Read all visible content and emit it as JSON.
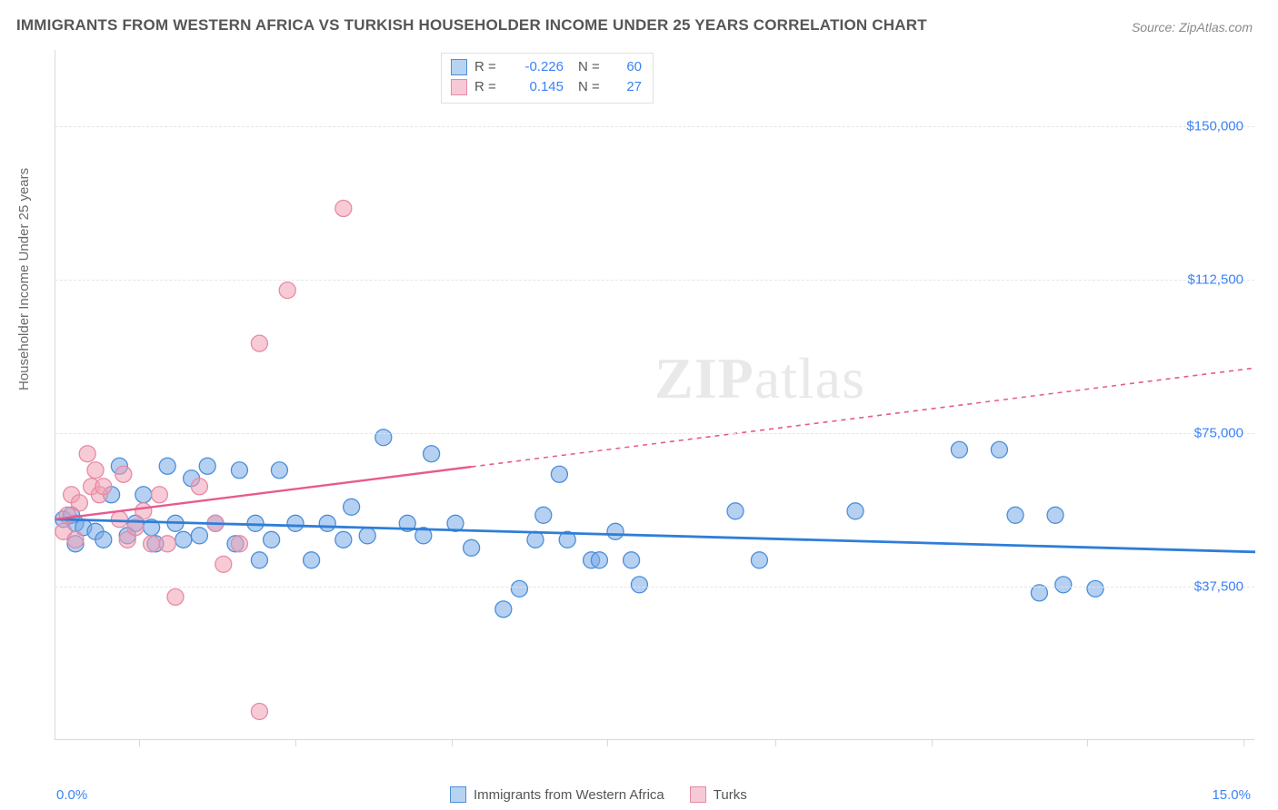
{
  "title": "IMMIGRANTS FROM WESTERN AFRICA VS TURKISH HOUSEHOLDER INCOME UNDER 25 YEARS CORRELATION CHART",
  "source": "Source: ZipAtlas.com",
  "watermark_zip": "ZIP",
  "watermark_atlas": "atlas",
  "y_axis_title": "Householder Income Under 25 years",
  "chart": {
    "type": "scatter",
    "background_color": "#ffffff",
    "grid_color": "#e5e5e5",
    "axis_color": "#d9d9d9",
    "xlim": [
      0,
      15
    ],
    "ylim": [
      0,
      168750
    ],
    "x_min_label": "0.0%",
    "x_max_label": "15.0%",
    "xtick_positions": [
      0.07,
      0.2,
      0.33,
      0.46,
      0.6,
      0.73,
      0.86,
      0.99
    ],
    "yticks": [
      {
        "value": 37500,
        "label": "$37,500"
      },
      {
        "value": 75000,
        "label": "$75,000"
      },
      {
        "value": 112500,
        "label": "$112,500"
      },
      {
        "value": 150000,
        "label": "$150,000"
      }
    ],
    "series": [
      {
        "key": "western_africa",
        "label": "Immigrants from Western Africa",
        "R": "-0.226",
        "N": "60",
        "point_fill": "rgba(120,170,230,0.55)",
        "point_stroke": "#4b8fd9",
        "line_color": "#2f7ed8",
        "line_dash": "none",
        "marker_radius": 9,
        "swatch_fill": "#b7d3f2",
        "swatch_border": "#4b8fd9",
        "trend": {
          "x1": 0.0,
          "y1": 54000,
          "x2": 15.0,
          "y2": 46000
        },
        "points": [
          [
            0.1,
            54000
          ],
          [
            0.2,
            55000
          ],
          [
            0.25,
            53000
          ],
          [
            0.25,
            48000
          ],
          [
            0.35,
            52000
          ],
          [
            0.5,
            51000
          ],
          [
            0.6,
            49000
          ],
          [
            0.7,
            60000
          ],
          [
            0.8,
            67000
          ],
          [
            0.9,
            50000
          ],
          [
            1.0,
            53000
          ],
          [
            1.1,
            60000
          ],
          [
            1.2,
            52000
          ],
          [
            1.25,
            48000
          ],
          [
            1.4,
            67000
          ],
          [
            1.5,
            53000
          ],
          [
            1.6,
            49000
          ],
          [
            1.7,
            64000
          ],
          [
            1.8,
            50000
          ],
          [
            1.9,
            67000
          ],
          [
            2.0,
            53000
          ],
          [
            2.25,
            48000
          ],
          [
            2.3,
            66000
          ],
          [
            2.5,
            53000
          ],
          [
            2.55,
            44000
          ],
          [
            2.7,
            49000
          ],
          [
            2.8,
            66000
          ],
          [
            3.0,
            53000
          ],
          [
            3.2,
            44000
          ],
          [
            3.4,
            53000
          ],
          [
            3.6,
            49000
          ],
          [
            3.7,
            57000
          ],
          [
            3.9,
            50000
          ],
          [
            4.1,
            74000
          ],
          [
            4.4,
            53000
          ],
          [
            4.6,
            50000
          ],
          [
            4.7,
            70000
          ],
          [
            5.0,
            53000
          ],
          [
            5.2,
            47000
          ],
          [
            5.6,
            32000
          ],
          [
            5.8,
            37000
          ],
          [
            6.0,
            49000
          ],
          [
            6.1,
            55000
          ],
          [
            6.3,
            65000
          ],
          [
            6.4,
            49000
          ],
          [
            6.7,
            44000
          ],
          [
            6.8,
            44000
          ],
          [
            7.0,
            51000
          ],
          [
            7.2,
            44000
          ],
          [
            7.3,
            38000
          ],
          [
            8.5,
            56000
          ],
          [
            8.8,
            44000
          ],
          [
            10.0,
            56000
          ],
          [
            11.3,
            71000
          ],
          [
            11.8,
            71000
          ],
          [
            12.0,
            55000
          ],
          [
            12.3,
            36000
          ],
          [
            12.5,
            55000
          ],
          [
            12.6,
            38000
          ],
          [
            13.0,
            37000
          ]
        ]
      },
      {
        "key": "turks",
        "label": "Turks",
        "R": "0.145",
        "N": "27",
        "point_fill": "rgba(240,160,180,0.55)",
        "point_stroke": "#e78aa5",
        "line_color": "#e75a8c",
        "line_dash": "solid_then_dash",
        "marker_radius": 9,
        "swatch_fill": "#f6c9d6",
        "swatch_border": "#e78aa5",
        "trend": {
          "x1": 0.0,
          "y1": 54000,
          "x2": 15.0,
          "y2": 91000,
          "solid_until_x": 5.2
        },
        "points": [
          [
            0.1,
            51000
          ],
          [
            0.15,
            55000
          ],
          [
            0.2,
            60000
          ],
          [
            0.25,
            49000
          ],
          [
            0.3,
            58000
          ],
          [
            0.4,
            70000
          ],
          [
            0.45,
            62000
          ],
          [
            0.5,
            66000
          ],
          [
            0.55,
            60000
          ],
          [
            0.6,
            62000
          ],
          [
            0.8,
            54000
          ],
          [
            0.85,
            65000
          ],
          [
            0.9,
            49000
          ],
          [
            1.0,
            52000
          ],
          [
            1.1,
            56000
          ],
          [
            1.2,
            48000
          ],
          [
            1.3,
            60000
          ],
          [
            1.4,
            48000
          ],
          [
            1.5,
            35000
          ],
          [
            1.8,
            62000
          ],
          [
            2.0,
            53000
          ],
          [
            2.1,
            43000
          ],
          [
            2.3,
            48000
          ],
          [
            2.55,
            97000
          ],
          [
            2.55,
            7000
          ],
          [
            2.9,
            110000
          ],
          [
            3.6,
            130000
          ]
        ]
      }
    ]
  },
  "legend_r_label": "R =",
  "legend_n_label": "N ="
}
